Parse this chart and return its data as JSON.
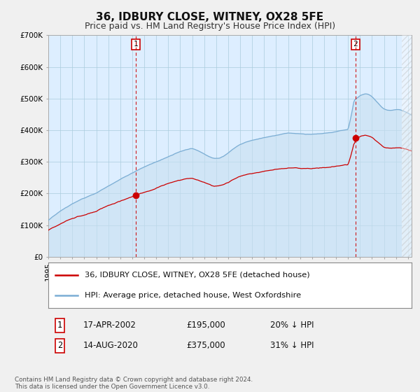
{
  "title": "36, IDBURY CLOSE, WITNEY, OX28 5FE",
  "subtitle": "Price paid vs. HM Land Registry's House Price Index (HPI)",
  "title_fontsize": 11,
  "subtitle_fontsize": 9,
  "background_color": "#f0f0f0",
  "plot_bg_color": "#ddeeff",
  "legend_label_property": "36, IDBURY CLOSE, WITNEY, OX28 5FE (detached house)",
  "legend_label_hpi": "HPI: Average price, detached house, West Oxfordshire",
  "property_color": "#cc0000",
  "hpi_color": "#7aadd4",
  "annotation1_date": "17-APR-2002",
  "annotation1_price": "£195,000",
  "annotation1_hpi": "20% ↓ HPI",
  "annotation2_date": "14-AUG-2020",
  "annotation2_price": "£375,000",
  "annotation2_hpi": "31% ↓ HPI",
  "footer": "Contains HM Land Registry data © Crown copyright and database right 2024.\nThis data is licensed under the Open Government Licence v3.0.",
  "ylim": [
    0,
    700000
  ],
  "yticks": [
    0,
    100000,
    200000,
    300000,
    400000,
    500000,
    600000,
    700000
  ],
  "ytick_labels": [
    "£0",
    "£100K",
    "£200K",
    "£300K",
    "£400K",
    "£500K",
    "£600K",
    "£700K"
  ],
  "vline1_x": 2002.29,
  "vline2_x": 2020.62,
  "marker1_x": 2002.29,
  "marker1_y": 195000,
  "marker2_x": 2020.62,
  "marker2_y": 375000,
  "xlim_left": 1995.0,
  "xlim_right": 2025.3
}
